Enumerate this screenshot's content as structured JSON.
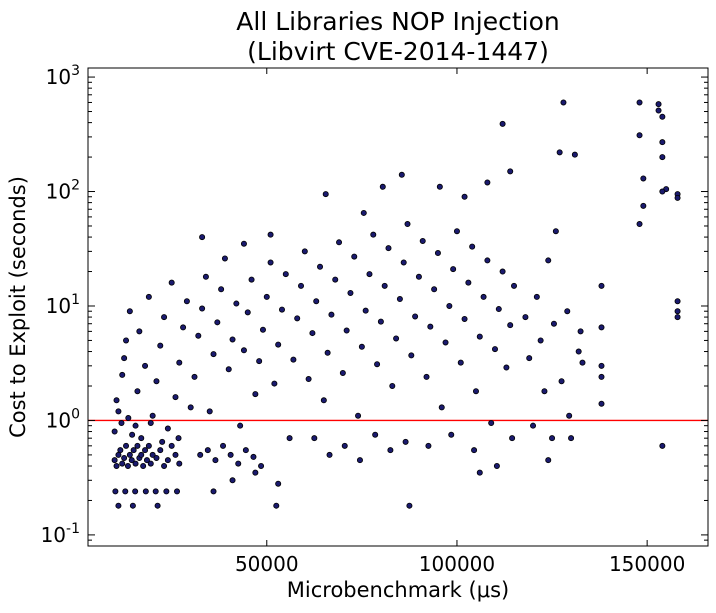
{
  "chart_data": {
    "type": "scatter",
    "title_lines": [
      "All Libraries NOP Injection",
      "(Libvirt CVE-2014-1447)"
    ],
    "xlabel": "Microbenchmark (μs)",
    "ylabel": "Cost to Exploit (seconds)",
    "xlim": [
      3000,
      166000
    ],
    "ylim": [
      0.08,
      1200
    ],
    "yscale": "log",
    "grid": false,
    "x_ticks": [
      {
        "value": 50000,
        "label": "50000"
      },
      {
        "value": 100000,
        "label": "100000"
      },
      {
        "value": 150000,
        "label": "150000"
      }
    ],
    "y_ticks": [
      {
        "value": 0.1,
        "base": "10",
        "exp": "-1"
      },
      {
        "value": 1,
        "base": "10",
        "exp": "0"
      },
      {
        "value": 10,
        "base": "10",
        "exp": "1"
      },
      {
        "value": 100,
        "base": "10",
        "exp": "2"
      },
      {
        "value": 1000,
        "base": "10",
        "exp": "3"
      }
    ],
    "reference_line": {
      "y": 1.0,
      "color": "#ff0000"
    },
    "marker_fill": "#1a1a6e",
    "marker_edge": "#000000",
    "series_points": [
      [
        10000,
        0.45
      ],
      [
        10500,
        0.4
      ],
      [
        11000,
        0.5
      ],
      [
        11500,
        0.55
      ],
      [
        12000,
        0.42
      ],
      [
        12500,
        0.47
      ],
      [
        13000,
        0.6
      ],
      [
        13500,
        0.4
      ],
      [
        14000,
        0.5
      ],
      [
        14500,
        0.45
      ],
      [
        15000,
        0.55
      ],
      [
        15500,
        0.42
      ],
      [
        16000,
        0.6
      ],
      [
        16500,
        0.47
      ],
      [
        17000,
        0.5
      ],
      [
        17500,
        0.4
      ],
      [
        18000,
        0.55
      ],
      [
        18500,
        0.45
      ],
      [
        19000,
        0.6
      ],
      [
        19500,
        0.42
      ],
      [
        20000,
        0.5
      ],
      [
        21000,
        0.47
      ],
      [
        22000,
        0.55
      ],
      [
        23000,
        0.4
      ],
      [
        24000,
        0.45
      ],
      [
        25000,
        0.6
      ],
      [
        26000,
        0.5
      ],
      [
        27000,
        0.42
      ],
      [
        10200,
        0.24
      ],
      [
        12800,
        0.24
      ],
      [
        15400,
        0.24
      ],
      [
        18200,
        0.24
      ],
      [
        20800,
        0.24
      ],
      [
        23600,
        0.24
      ],
      [
        26400,
        0.24
      ],
      [
        11000,
        0.18
      ],
      [
        14800,
        0.18
      ],
      [
        21300,
        0.18
      ],
      [
        10000,
        0.8
      ],
      [
        11000,
        1.2
      ],
      [
        12000,
        2.5
      ],
      [
        13000,
        5
      ],
      [
        14000,
        9
      ],
      [
        10500,
        1.5
      ],
      [
        12500,
        3.5
      ],
      [
        15500,
        0.9
      ],
      [
        16000,
        1.8
      ],
      [
        17000,
        0.7
      ],
      [
        18000,
        3
      ],
      [
        19000,
        12
      ],
      [
        16500,
        6
      ],
      [
        20000,
        1.1
      ],
      [
        21000,
        2.2
      ],
      [
        22000,
        4.5
      ],
      [
        23000,
        8
      ],
      [
        24000,
        0.85
      ],
      [
        25000,
        16
      ],
      [
        26000,
        1.6
      ],
      [
        27000,
        3.2
      ],
      [
        28000,
        6.5
      ],
      [
        29000,
        11
      ],
      [
        30000,
        1.3
      ],
      [
        11800,
        0.95
      ],
      [
        13600,
        1.05
      ],
      [
        14600,
        0.75
      ],
      [
        19500,
        0.95
      ],
      [
        22500,
        0.65
      ],
      [
        26800,
        0.7
      ],
      [
        31000,
        2.4
      ],
      [
        32000,
        5.5
      ],
      [
        33000,
        9.5
      ],
      [
        34000,
        18
      ],
      [
        35000,
        1.2
      ],
      [
        36000,
        3.8
      ],
      [
        37000,
        7.2
      ],
      [
        38000,
        14
      ],
      [
        39000,
        26
      ],
      [
        40000,
        2.8
      ],
      [
        41000,
        5.1
      ],
      [
        42000,
        10.5
      ],
      [
        43000,
        0.9
      ],
      [
        44000,
        4.1
      ],
      [
        45000,
        8.8
      ],
      [
        46000,
        17
      ],
      [
        47000,
        1.7
      ],
      [
        48000,
        3.3
      ],
      [
        49000,
        6.2
      ],
      [
        50000,
        12
      ],
      [
        51000,
        24
      ],
      [
        52000,
        2.1
      ],
      [
        53000,
        4.6
      ],
      [
        54000,
        9.3
      ],
      [
        55000,
        19
      ],
      [
        56000,
        0.7
      ],
      [
        57000,
        3.4
      ],
      [
        58000,
        7.8
      ],
      [
        59000,
        15
      ],
      [
        60000,
        30
      ],
      [
        32500,
        0.5
      ],
      [
        34500,
        0.55
      ],
      [
        36500,
        0.45
      ],
      [
        38500,
        0.6
      ],
      [
        40500,
        0.5
      ],
      [
        42500,
        0.42
      ],
      [
        44500,
        0.55
      ],
      [
        46500,
        0.48
      ],
      [
        48500,
        0.4
      ],
      [
        52500,
        0.18
      ],
      [
        36000,
        0.24
      ],
      [
        41000,
        0.3
      ],
      [
        47000,
        0.35
      ],
      [
        53000,
        0.28
      ],
      [
        33000,
        40
      ],
      [
        44000,
        35
      ],
      [
        51000,
        42
      ],
      [
        61000,
        2.3
      ],
      [
        62000,
        5.8
      ],
      [
        63000,
        11
      ],
      [
        64000,
        22
      ],
      [
        65000,
        1.5
      ],
      [
        66000,
        3.9
      ],
      [
        67000,
        8.4
      ],
      [
        68000,
        17
      ],
      [
        69000,
        36
      ],
      [
        70000,
        2.6
      ],
      [
        71000,
        6.1
      ],
      [
        72000,
        13
      ],
      [
        73000,
        27
      ],
      [
        74000,
        1.1
      ],
      [
        75000,
        4.4
      ],
      [
        76000,
        9.1
      ],
      [
        77000,
        19
      ],
      [
        78000,
        42
      ],
      [
        79000,
        3.1
      ],
      [
        80000,
        7.3
      ],
      [
        81000,
        15
      ],
      [
        82000,
        32
      ],
      [
        83000,
        2.0
      ],
      [
        84000,
        5.2
      ],
      [
        85000,
        11.5
      ],
      [
        86000,
        24
      ],
      [
        87000,
        52
      ],
      [
        88000,
        3.7
      ],
      [
        89000,
        8.1
      ],
      [
        90000,
        18
      ],
      [
        62500,
        0.7
      ],
      [
        66500,
        0.5
      ],
      [
        70500,
        0.6
      ],
      [
        74500,
        0.45
      ],
      [
        78500,
        0.75
      ],
      [
        82500,
        0.55
      ],
      [
        86500,
        0.65
      ],
      [
        65500,
        95
      ],
      [
        75500,
        65
      ],
      [
        80500,
        110
      ],
      [
        85500,
        140
      ],
      [
        87500,
        0.18
      ],
      [
        91000,
        37
      ],
      [
        92000,
        2.4
      ],
      [
        93000,
        6.6
      ],
      [
        94000,
        14
      ],
      [
        95000,
        29
      ],
      [
        96000,
        1.3
      ],
      [
        97000,
        4.8
      ],
      [
        98000,
        10
      ],
      [
        99000,
        21
      ],
      [
        100000,
        45
      ],
      [
        101000,
        3.2
      ],
      [
        102000,
        7.7
      ],
      [
        103000,
        16
      ],
      [
        104000,
        33
      ],
      [
        105000,
        1.8
      ],
      [
        106000,
        5.4
      ],
      [
        107000,
        12
      ],
      [
        108000,
        25
      ],
      [
        109000,
        0.95
      ],
      [
        110000,
        4.2
      ],
      [
        111000,
        9.4
      ],
      [
        112000,
        20
      ],
      [
        113000,
        2.9
      ],
      [
        114000,
        6.8
      ],
      [
        115000,
        15
      ],
      [
        92500,
        0.6
      ],
      [
        98500,
        0.75
      ],
      [
        104500,
        0.55
      ],
      [
        110500,
        0.4
      ],
      [
        114500,
        0.7
      ],
      [
        106000,
        0.35
      ],
      [
        95500,
        110
      ],
      [
        102000,
        90
      ],
      [
        108000,
        120
      ],
      [
        112000,
        390
      ],
      [
        114000,
        150
      ],
      [
        118000,
        8
      ],
      [
        119000,
        3.5
      ],
      [
        120000,
        0.9
      ],
      [
        121000,
        12
      ],
      [
        122000,
        5
      ],
      [
        123000,
        1.8
      ],
      [
        124000,
        25
      ],
      [
        125000,
        0.7
      ],
      [
        126000,
        45
      ],
      [
        127000,
        220
      ],
      [
        128000,
        600
      ],
      [
        129000,
        9
      ],
      [
        130000,
        0.7
      ],
      [
        131000,
        210
      ],
      [
        132000,
        4
      ],
      [
        133000,
        3.2
      ],
      [
        125500,
        7
      ],
      [
        127500,
        2.2
      ],
      [
        129500,
        1.1
      ],
      [
        132500,
        6
      ],
      [
        124000,
        0.45
      ],
      [
        138000,
        15
      ],
      [
        138000,
        6.5
      ],
      [
        138000,
        3
      ],
      [
        138000,
        2.4
      ],
      [
        138000,
        1.4
      ],
      [
        148000,
        600
      ],
      [
        148000,
        310
      ],
      [
        149000,
        130
      ],
      [
        149000,
        75
      ],
      [
        148000,
        52
      ],
      [
        153000,
        580
      ],
      [
        153000,
        510
      ],
      [
        154000,
        450
      ],
      [
        154000,
        270
      ],
      [
        154000,
        200
      ],
      [
        155000,
        105
      ],
      [
        154000,
        100
      ],
      [
        154000,
        0.6
      ],
      [
        158000,
        95
      ],
      [
        158000,
        88
      ],
      [
        158000,
        11
      ],
      [
        158000,
        9
      ],
      [
        158000,
        8
      ]
    ]
  }
}
